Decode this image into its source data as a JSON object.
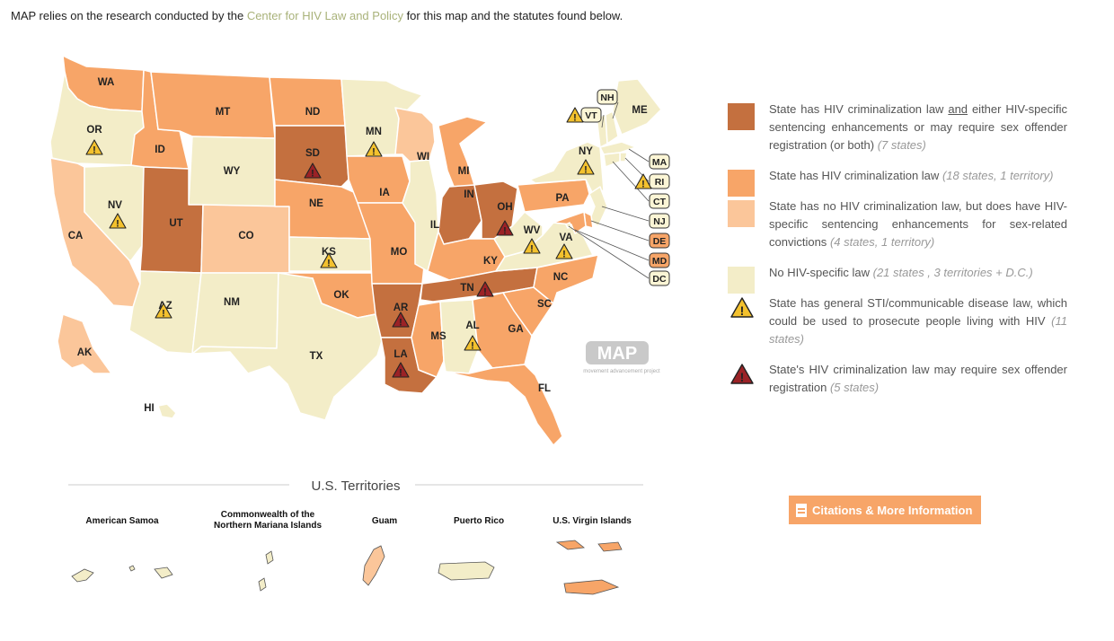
{
  "intro": {
    "before": "MAP relies on the research conducted by the ",
    "link": "Center for HIV Law and Policy",
    "after": " for this map and the statutes found below."
  },
  "colors": {
    "law_plus": "#c4703f",
    "law": "#f7a568",
    "enhancement": "#fbc69a",
    "none": "#f3edc8",
    "warning": "#f3c12e",
    "registration": "#9b2226"
  },
  "states": [
    {
      "abbr": "WA",
      "category": "law"
    },
    {
      "abbr": "OR",
      "category": "none",
      "sti": true
    },
    {
      "abbr": "CA",
      "category": "enhancement"
    },
    {
      "abbr": "NV",
      "category": "none",
      "sti": true
    },
    {
      "abbr": "ID",
      "category": "law"
    },
    {
      "abbr": "MT",
      "category": "law"
    },
    {
      "abbr": "WY",
      "category": "none"
    },
    {
      "abbr": "UT",
      "category": "law_plus"
    },
    {
      "abbr": "CO",
      "category": "enhancement"
    },
    {
      "abbr": "AZ",
      "category": "none",
      "sti": true
    },
    {
      "abbr": "NM",
      "category": "none"
    },
    {
      "abbr": "ND",
      "category": "law"
    },
    {
      "abbr": "SD",
      "category": "law_plus",
      "registration": true
    },
    {
      "abbr": "NE",
      "category": "law"
    },
    {
      "abbr": "KS",
      "category": "none",
      "sti": true
    },
    {
      "abbr": "OK",
      "category": "law"
    },
    {
      "abbr": "TX",
      "category": "none"
    },
    {
      "abbr": "MN",
      "category": "none",
      "sti": true
    },
    {
      "abbr": "IA",
      "category": "law"
    },
    {
      "abbr": "MO",
      "category": "law"
    },
    {
      "abbr": "AR",
      "category": "law_plus",
      "registration": true
    },
    {
      "abbr": "LA",
      "category": "law_plus",
      "registration": true
    },
    {
      "abbr": "WI",
      "category": "enhancement"
    },
    {
      "abbr": "IL",
      "category": "none"
    },
    {
      "abbr": "MI",
      "category": "law"
    },
    {
      "abbr": "IN",
      "category": "law_plus"
    },
    {
      "abbr": "OH",
      "category": "law_plus",
      "registration": true
    },
    {
      "abbr": "KY",
      "category": "law"
    },
    {
      "abbr": "TN",
      "category": "law_plus",
      "registration": true
    },
    {
      "abbr": "MS",
      "category": "law"
    },
    {
      "abbr": "AL",
      "category": "none",
      "sti": true
    },
    {
      "abbr": "GA",
      "category": "law"
    },
    {
      "abbr": "FL",
      "category": "law"
    },
    {
      "abbr": "SC",
      "category": "law"
    },
    {
      "abbr": "NC",
      "category": "law"
    },
    {
      "abbr": "VA",
      "category": "none",
      "sti": true
    },
    {
      "abbr": "WV",
      "category": "none",
      "sti": true
    },
    {
      "abbr": "PA",
      "category": "law"
    },
    {
      "abbr": "NY",
      "category": "none",
      "sti": true
    },
    {
      "abbr": "VT",
      "category": "none",
      "sti": true
    },
    {
      "abbr": "NH",
      "category": "none"
    },
    {
      "abbr": "ME",
      "category": "none"
    },
    {
      "abbr": "MA",
      "category": "none"
    },
    {
      "abbr": "RI",
      "category": "none",
      "sti": true
    },
    {
      "abbr": "CT",
      "category": "none"
    },
    {
      "abbr": "NJ",
      "category": "none"
    },
    {
      "abbr": "DE",
      "category": "law"
    },
    {
      "abbr": "MD",
      "category": "law"
    },
    {
      "abbr": "DC",
      "category": "none"
    },
    {
      "abbr": "AK",
      "category": "enhancement"
    },
    {
      "abbr": "HI",
      "category": "none"
    }
  ],
  "logo": {
    "text": "MAP",
    "tagline": "movement advancement project"
  },
  "territories": {
    "title": "U.S. Territories",
    "items": [
      {
        "name_lines": [
          "American Samoa"
        ],
        "category": "none"
      },
      {
        "name_lines": [
          "Commonwealth of the",
          "Northern Mariana Islands"
        ],
        "category": "none"
      },
      {
        "name_lines": [
          "Guam"
        ],
        "category": "enhancement"
      },
      {
        "name_lines": [
          "Puerto Rico"
        ],
        "category": "none"
      },
      {
        "name_lines": [
          "U.S. Virgin Islands"
        ],
        "category": "law"
      }
    ]
  },
  "legend": [
    {
      "key": "law_plus",
      "text_a": "State has HIV criminalization law ",
      "text_u": "and",
      "text_b": " either HIV-specific sentencing enhancements or may require sex offender registration (or both)",
      "count": "(7 states)"
    },
    {
      "key": "law",
      "text_a": "State has HIV criminalization law",
      "text_u": "",
      "text_b": "",
      "count": "(18 states, 1 territory)"
    },
    {
      "key": "enhancement",
      "text_a": "State has no HIV criminalization law, but does have HIV-specific sentencing enhancements for sex-related convictions",
      "text_u": "",
      "text_b": "",
      "count": "(4 states, 1 territory)"
    },
    {
      "key": "none",
      "text_a": "No HIV-specific law",
      "text_u": "",
      "text_b": "",
      "count": "(21 states , 3 territories + D.C.)"
    },
    {
      "key": "warning",
      "text_a": "State has general STI/communicable disease law, which could be used to prosecute people living with HIV",
      "text_u": "",
      "text_b": "",
      "count": "(11 states)"
    },
    {
      "key": "registration",
      "text_a": "State's HIV criminalization law may require sex offender registration",
      "text_u": "",
      "text_b": "",
      "count": "(5 states)"
    }
  ],
  "button": {
    "label": "Citations & More Information"
  }
}
